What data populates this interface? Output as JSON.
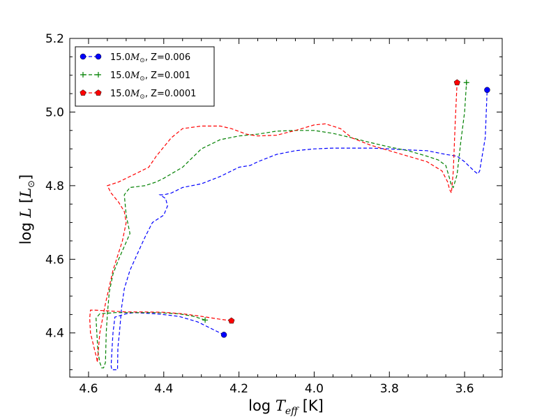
{
  "chart_data": {
    "type": "line",
    "xlabel": "log T_eff [K]",
    "ylabel": "log L [L_⊙]",
    "xlim": [
      4.65,
      3.5
    ],
    "ylim": [
      4.28,
      5.2
    ],
    "x_inverted": true,
    "xticks": [
      4.6,
      4.4,
      4.2,
      4.0,
      3.8,
      3.6
    ],
    "yticks": [
      4.4,
      4.6,
      4.8,
      5.0,
      5.2
    ],
    "xtick_labels": [
      "4.6",
      "4.4",
      "4.2",
      "4.0",
      "3.8",
      "3.6"
    ],
    "ytick_labels": [
      "4.4",
      "4.6",
      "4.8",
      "5.0",
      "5.2"
    ],
    "grid": false,
    "legend_position": "top-left",
    "series": [
      {
        "name": "15.0M_⊙, Z=0.006",
        "legend_prefix": "15.0",
        "legend_suffix": ", Z=0.006",
        "color": "#0000ff",
        "marker": "circle",
        "x": [
          4.24,
          4.27,
          4.31,
          4.36,
          4.42,
          4.48,
          4.5,
          4.53,
          4.532,
          4.535,
          4.538,
          4.54,
          4.538,
          4.535,
          4.523,
          4.522,
          4.518,
          4.512,
          4.505,
          4.49,
          4.47,
          4.45,
          4.43,
          4.4,
          4.39,
          4.395,
          4.41,
          4.4,
          4.38,
          4.35,
          4.3,
          4.25,
          4.2,
          4.17,
          4.15,
          4.1,
          4.05,
          4.0,
          3.95,
          3.9,
          3.85,
          3.8,
          3.75,
          3.7,
          3.65,
          3.62,
          3.6,
          3.575,
          3.565,
          3.56,
          3.555,
          3.545,
          3.54
        ],
        "y": [
          4.395,
          4.41,
          4.43,
          4.445,
          4.452,
          4.455,
          4.452,
          4.443,
          4.425,
          4.4,
          4.35,
          4.31,
          4.3,
          4.3,
          4.3,
          4.36,
          4.4,
          4.47,
          4.52,
          4.57,
          4.615,
          4.66,
          4.7,
          4.72,
          4.745,
          4.765,
          4.775,
          4.775,
          4.78,
          4.795,
          4.805,
          4.825,
          4.85,
          4.855,
          4.865,
          4.885,
          4.895,
          4.9,
          4.902,
          4.902,
          4.902,
          4.9,
          4.897,
          4.895,
          4.885,
          4.88,
          4.865,
          4.84,
          4.832,
          4.84,
          4.87,
          4.93,
          5.06
        ]
      },
      {
        "name": "15.0M_⊙, Z=0.001",
        "legend_prefix": "15.0",
        "legend_suffix": ", Z=0.001",
        "color": "#008000",
        "marker": "plus",
        "x": [
          4.29,
          4.32,
          4.36,
          4.42,
          4.48,
          4.53,
          4.57,
          4.58,
          4.578,
          4.575,
          4.57,
          4.565,
          4.56,
          4.555,
          4.553,
          4.55,
          4.545,
          4.535,
          4.52,
          4.505,
          4.49,
          4.5,
          4.505,
          4.49,
          4.45,
          4.42,
          4.4,
          4.35,
          4.3,
          4.25,
          4.2,
          4.15,
          4.1,
          4.05,
          4.0,
          3.95,
          3.9,
          3.85,
          3.8,
          3.75,
          3.7,
          3.67,
          3.65,
          3.64,
          3.635,
          3.63,
          3.62,
          3.61,
          3.6,
          3.595
        ],
        "y": [
          4.435,
          4.445,
          4.452,
          4.455,
          4.455,
          4.455,
          4.452,
          4.44,
          4.4,
          4.35,
          4.32,
          4.305,
          4.305,
          4.32,
          4.4,
          4.45,
          4.51,
          4.56,
          4.6,
          4.635,
          4.67,
          4.72,
          4.775,
          4.795,
          4.8,
          4.81,
          4.82,
          4.85,
          4.9,
          4.925,
          4.935,
          4.94,
          4.948,
          4.95,
          4.95,
          4.942,
          4.93,
          4.917,
          4.905,
          4.895,
          4.88,
          4.87,
          4.855,
          4.82,
          4.8,
          4.795,
          4.83,
          4.92,
          5.0,
          5.08
        ]
      },
      {
        "name": "15.0M_⊙, Z=0.0001",
        "legend_prefix": "15.0",
        "legend_suffix": ", Z=0.0001",
        "color": "#ff0000",
        "marker": "pentagon",
        "x": [
          4.22,
          4.25,
          4.3,
          4.35,
          4.4,
          4.45,
          4.5,
          4.55,
          4.585,
          4.595,
          4.597,
          4.595,
          4.59,
          4.583,
          4.578,
          4.577,
          4.575,
          4.57,
          4.555,
          4.535,
          4.51,
          4.5,
          4.505,
          4.52,
          4.54,
          4.55,
          4.52,
          4.48,
          4.44,
          4.42,
          4.4,
          4.38,
          4.35,
          4.3,
          4.25,
          4.22,
          4.18,
          4.17,
          4.15,
          4.1,
          4.05,
          4.0,
          3.97,
          3.93,
          3.9,
          3.85,
          3.8,
          3.75,
          3.7,
          3.66,
          3.645,
          3.64,
          3.635,
          3.63,
          3.625,
          3.62
        ],
        "y": [
          4.433,
          4.437,
          4.445,
          4.452,
          4.456,
          4.457,
          4.457,
          4.46,
          4.462,
          4.462,
          4.44,
          4.4,
          4.38,
          4.35,
          4.33,
          4.32,
          4.34,
          4.4,
          4.48,
          4.57,
          4.65,
          4.7,
          4.73,
          4.755,
          4.78,
          4.8,
          4.81,
          4.83,
          4.85,
          4.88,
          4.905,
          4.93,
          4.955,
          4.962,
          4.962,
          4.955,
          4.94,
          4.938,
          4.935,
          4.937,
          4.95,
          4.965,
          4.968,
          4.955,
          4.93,
          4.91,
          4.895,
          4.88,
          4.865,
          4.84,
          4.81,
          4.79,
          4.78,
          4.84,
          4.97,
          5.08
        ]
      }
    ]
  }
}
